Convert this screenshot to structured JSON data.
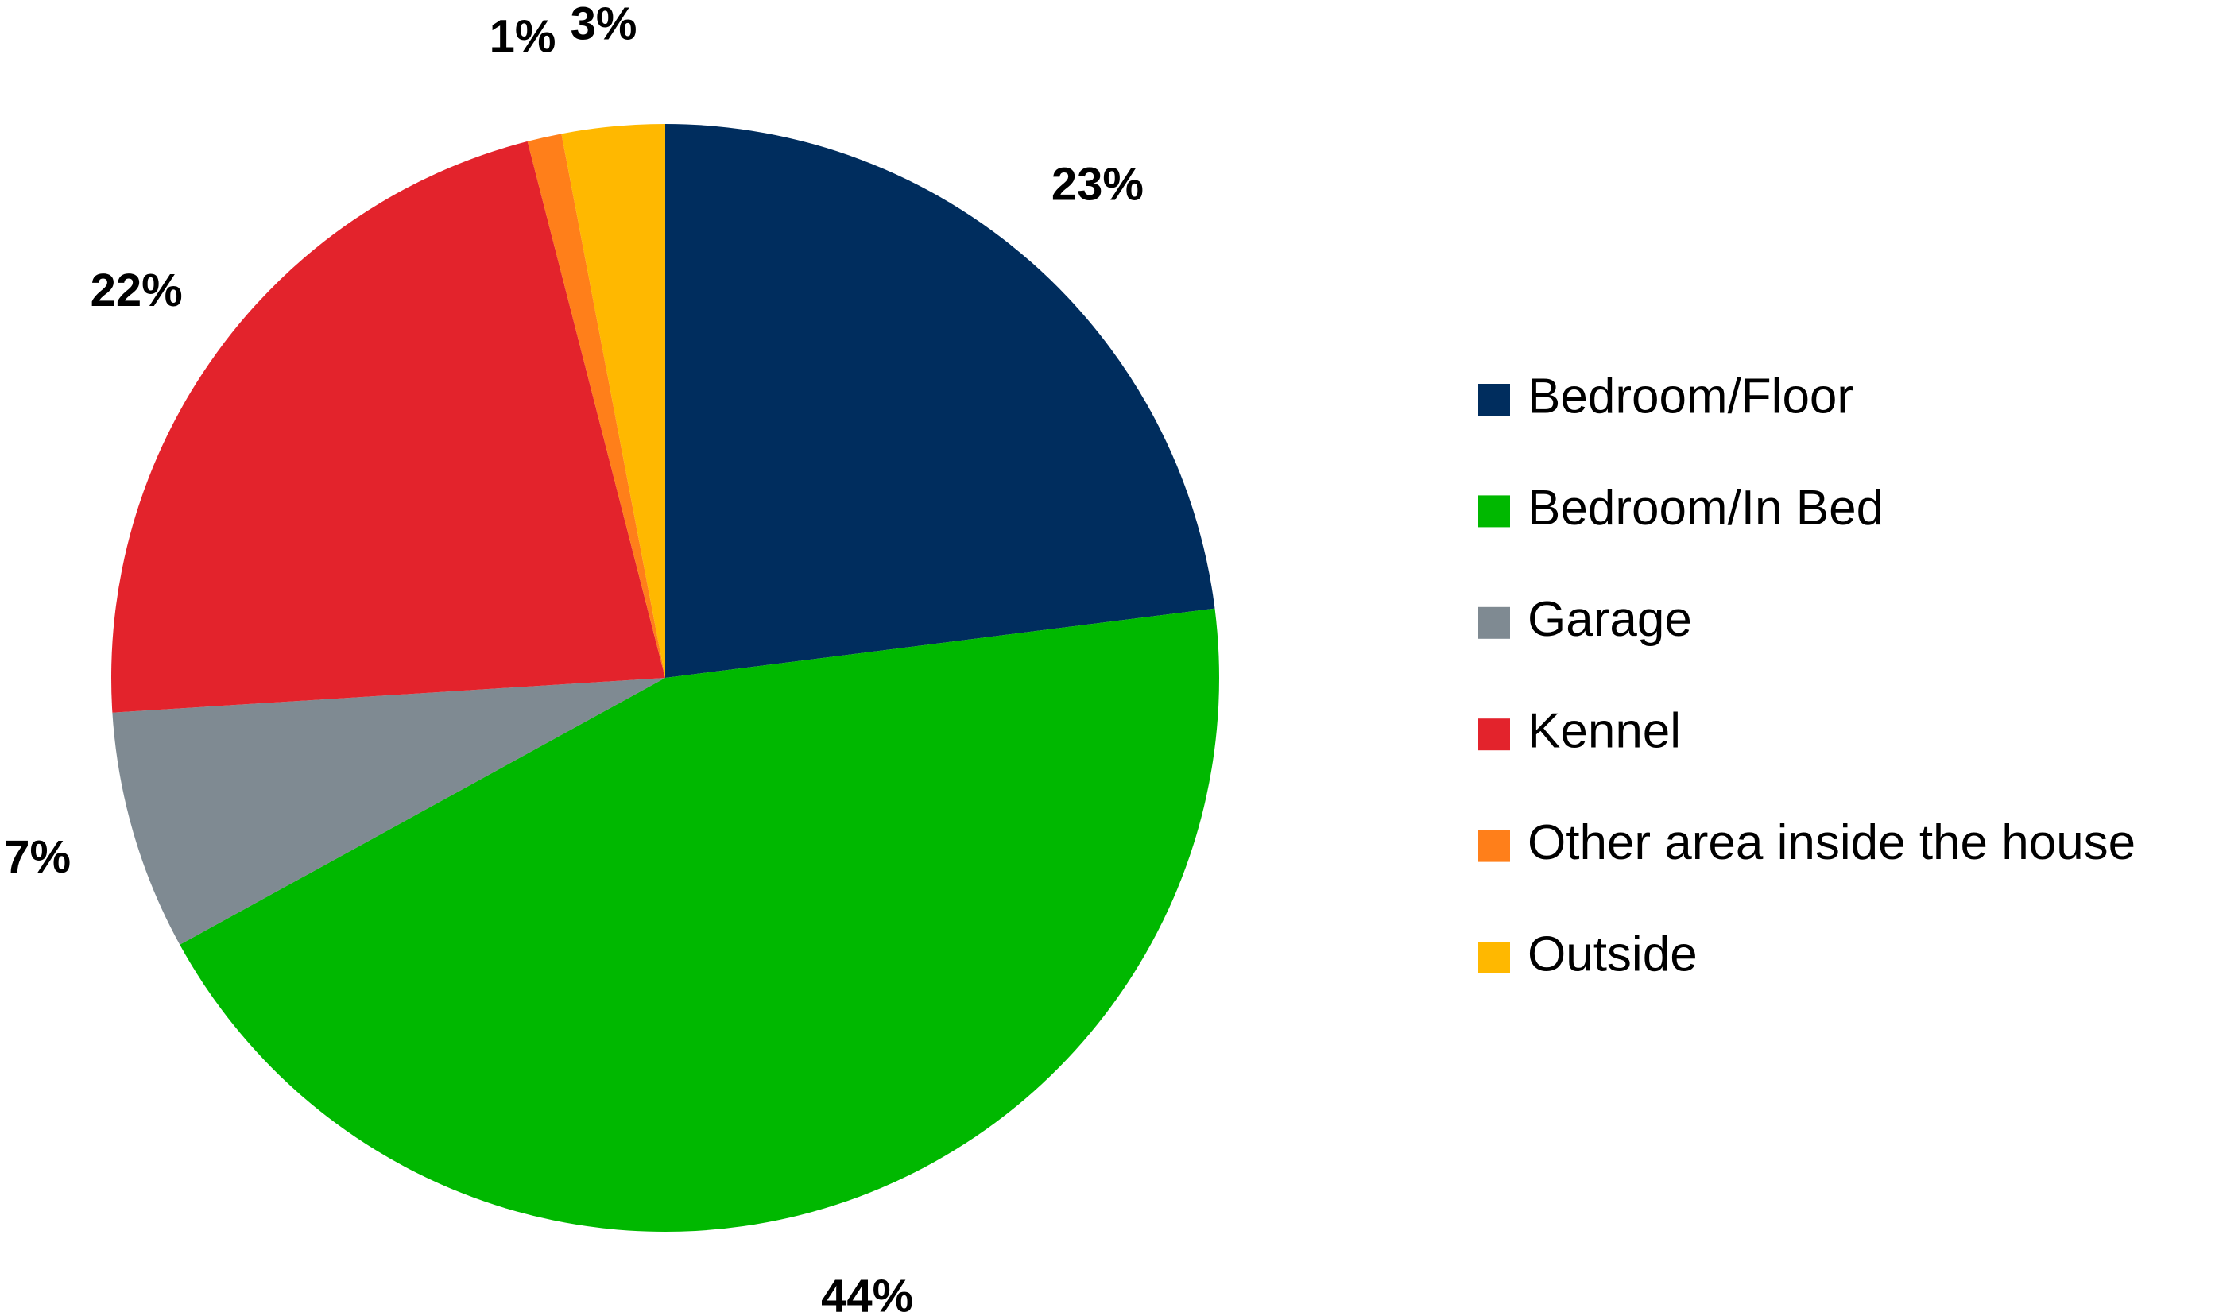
{
  "chart_data": {
    "type": "pie",
    "categories": [
      "Bedroom/Floor",
      "Bedroom/In Bed",
      "Garage",
      "Kennel",
      "Other area inside the house",
      "Outside"
    ],
    "values": [
      23,
      44,
      7,
      22,
      1,
      3
    ],
    "value_labels": [
      "23%",
      "44%",
      "7%",
      "22%",
      "1%",
      "3%"
    ],
    "colors": [
      "#002d5e",
      "#00b800",
      "#7f8a92",
      "#e3232c",
      "#ff7f1a",
      "#ffb800"
    ],
    "legend": "right"
  }
}
